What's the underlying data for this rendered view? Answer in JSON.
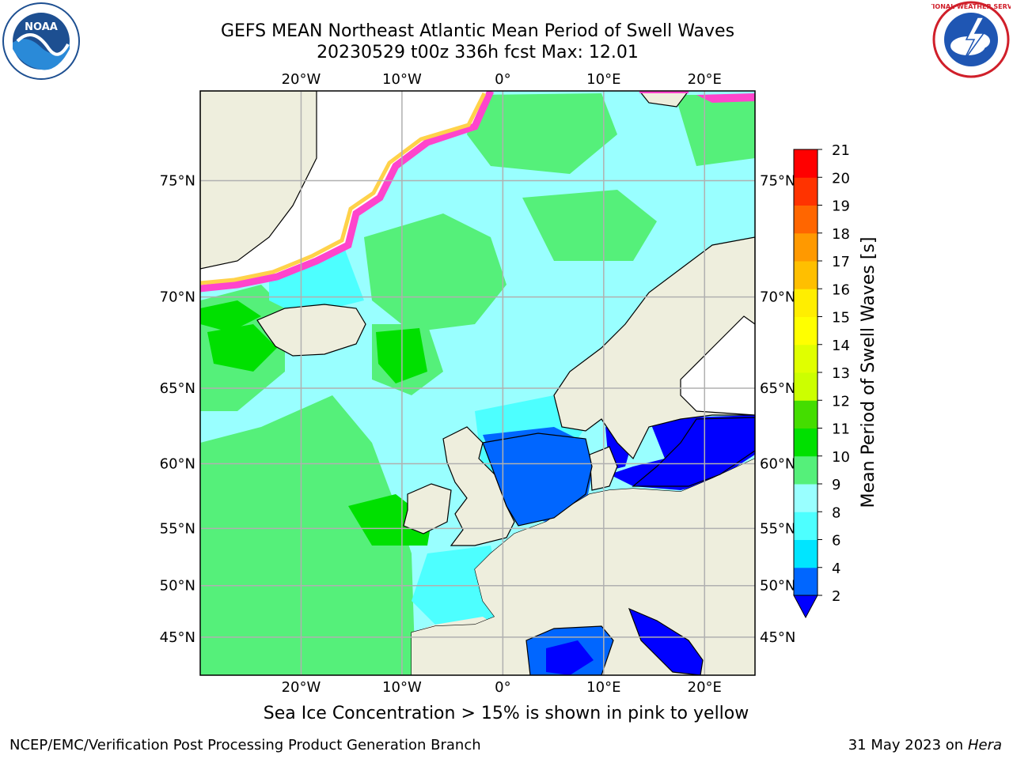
{
  "title": {
    "line1": "GEFS MEAN Northeast Atlantic Mean Period of Swell Waves",
    "line2": "20230529 t00z 336h fcst   Max: 12.01"
  },
  "logos": {
    "left": "noaa-logo",
    "left_text": "NOAA",
    "right": "nws-logo",
    "right_text": "NATIONAL WEATHER SERVICE"
  },
  "map": {
    "projection": "mercator",
    "lon_range": [
      -30,
      25
    ],
    "lat_range": [
      41,
      78
    ],
    "lon_ticks": [
      {
        "value": -20,
        "label": "20°W"
      },
      {
        "value": -10,
        "label": "10°W"
      },
      {
        "value": 0,
        "label": "0°"
      },
      {
        "value": 10,
        "label": "10°E"
      },
      {
        "value": 20,
        "label": "20°E"
      }
    ],
    "lat_ticks": [
      {
        "value": 45,
        "label": "45°N"
      },
      {
        "value": 50,
        "label": "50°N"
      },
      {
        "value": 55,
        "label": "55°N"
      },
      {
        "value": 60,
        "label": "60°N"
      },
      {
        "value": 65,
        "label": "65°N"
      },
      {
        "value": 70,
        "label": "70°N"
      },
      {
        "value": 75,
        "label": "75°N"
      }
    ],
    "grid": true,
    "colors": {
      "land": "#eeeedd",
      "coast": "#000000",
      "grid": "#b0b0b0",
      "ice_pink": "#ff44cc",
      "ice_yellow": "#ffd24a"
    }
  },
  "colorbar": {
    "label": "Mean Period of Swell Waves [s]",
    "extend": "min",
    "levels": [
      2,
      4,
      6,
      8,
      9,
      10,
      11,
      12,
      13,
      14,
      15,
      16,
      17,
      18,
      19,
      20,
      21
    ],
    "colors": [
      "#0066ff",
      "#00e5ff",
      "#4dffff",
      "#99ffff",
      "#55f07a",
      "#00e000",
      "#44dd00",
      "#ccff00",
      "#e0ff00",
      "#ffff00",
      "#ffee00",
      "#ffbf00",
      "#ff9900",
      "#ff6600",
      "#ff3300",
      "#ff0000"
    ],
    "under_color": "#0000ff"
  },
  "footer": {
    "note": "Sea Ice Concentration > 15% is shown in pink to yellow",
    "credit": "NCEP/EMC/Verification Post Processing Product Generation Branch",
    "date": "31 May 2023 on",
    "machine": "Hera"
  }
}
